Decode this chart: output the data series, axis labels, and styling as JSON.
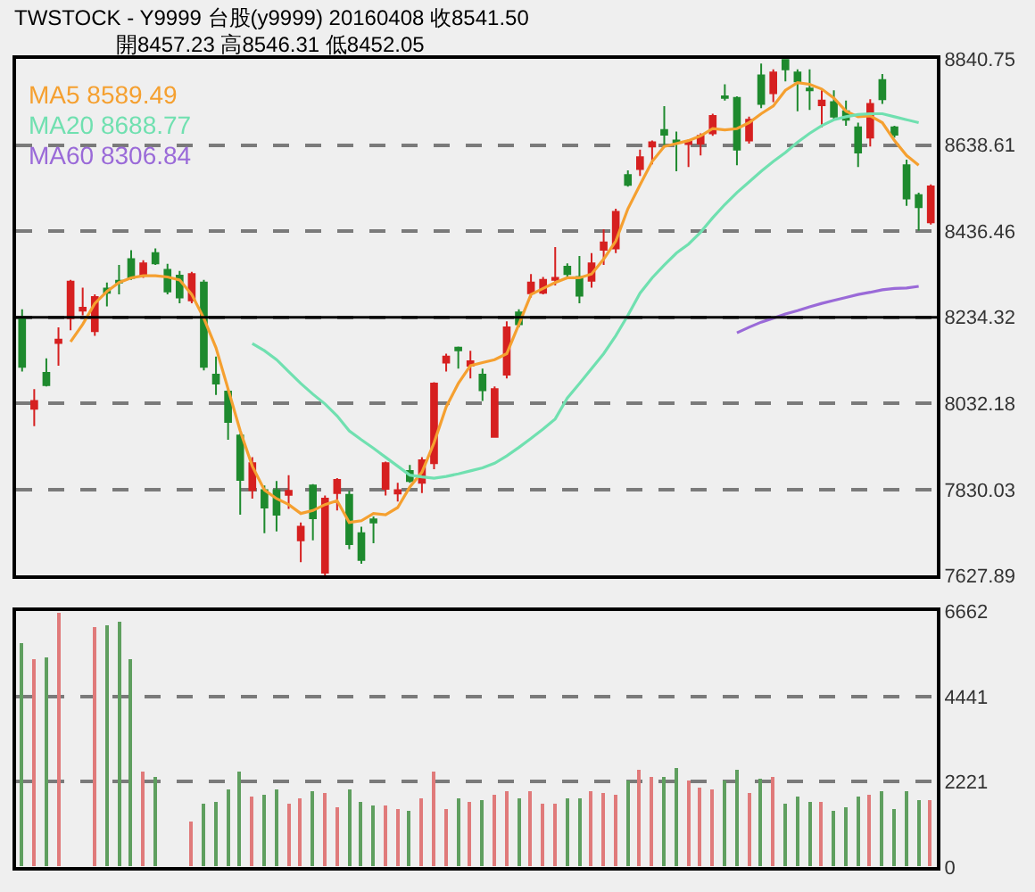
{
  "chart_data": [
    {
      "type": "candlestick",
      "title": "TWSTOCK - Y9999 台股(y9999) 20160408 收8541.50",
      "subtitle": "開8457.23 高8546.31 低8452.05",
      "categories": [
        null,
        null,
        null,
        null,
        null,
        null,
        null,
        null,
        null,
        null,
        null,
        null,
        null,
        null,
        null,
        null,
        null,
        null,
        null,
        null,
        null,
        null,
        null,
        null,
        null,
        null,
        null,
        null,
        null,
        null,
        null,
        null,
        null,
        null,
        null,
        null,
        null,
        null,
        null,
        null,
        null,
        null,
        null,
        null,
        null,
        null,
        null,
        null,
        null,
        null,
        null,
        null,
        null,
        null,
        null,
        null,
        null,
        null,
        null,
        null,
        null,
        null,
        null,
        null,
        null,
        null,
        null,
        null,
        null,
        null,
        null,
        null,
        null,
        null,
        null,
        null
      ],
      "ohlc": [
        [
          8232,
          8253,
          8107,
          8118
        ],
        [
          8020,
          8066,
          7979,
          8038
        ],
        [
          8104,
          8138,
          8072,
          8075
        ],
        [
          8174,
          8211,
          8121,
          8182
        ],
        [
          8232,
          8322,
          8204,
          8318
        ],
        [
          8250,
          8304,
          8239,
          8257
        ],
        [
          8202,
          8288,
          8191,
          8282
        ],
        [
          8302,
          8316,
          8260,
          8292
        ],
        [
          8320,
          8357,
          8288,
          8316
        ],
        [
          8371,
          8392,
          8322,
          8327
        ],
        [
          8334,
          8368,
          8327,
          8361
        ],
        [
          8385,
          8396,
          8357,
          8361
        ],
        [
          8346,
          8360,
          8288,
          8295
        ],
        [
          8332,
          8343,
          8267,
          8281
        ],
        [
          8274,
          8341,
          8267,
          8336
        ],
        [
          8316,
          8322,
          8110,
          8118
        ],
        [
          8100,
          8142,
          8052,
          8079
        ],
        [
          8060,
          8066,
          7947,
          7989
        ],
        [
          7957,
          7961,
          7771,
          7853
        ],
        [
          7829,
          7906,
          7809,
          7892
        ],
        [
          7829,
          7840,
          7728,
          7788
        ],
        [
          7829,
          7850,
          7732,
          7771
        ],
        [
          7818,
          7864,
          7785,
          7827
        ],
        [
          7711,
          7753,
          7660,
          7743
        ],
        [
          7840,
          7843,
          7711,
          7763
        ],
        [
          7635,
          7816,
          7628,
          7809
        ],
        [
          7822,
          7857,
          7781,
          7853
        ],
        [
          7818,
          7827,
          7690,
          7702
        ],
        [
          7728,
          7743,
          7656,
          7665
        ],
        [
          7760,
          7767,
          7704,
          7753
        ],
        [
          7832,
          7896,
          7816,
          7892
        ],
        [
          7821,
          7846,
          7802,
          7829
        ],
        [
          7874,
          7888,
          7846,
          7850
        ],
        [
          7846,
          7906,
          7822,
          7899
        ],
        [
          7892,
          8082,
          7878,
          8079
        ],
        [
          8128,
          8149,
          8107,
          8142
        ],
        [
          8163,
          8166,
          8114,
          8157
        ],
        [
          8121,
          8156,
          8091,
          8131
        ],
        [
          8100,
          8114,
          8038,
          8063
        ],
        [
          7954,
          8072,
          7952,
          8066
        ],
        [
          8100,
          8225,
          8091,
          8211
        ],
        [
          8246,
          8253,
          8211,
          8218
        ],
        [
          8291,
          8336,
          8281,
          8316
        ],
        [
          8292,
          8329,
          8288,
          8322
        ],
        [
          8322,
          8399,
          8309,
          8327
        ],
        [
          8353,
          8361,
          8327,
          8336
        ],
        [
          8329,
          8378,
          8267,
          8285
        ],
        [
          8320,
          8385,
          8304,
          8361
        ],
        [
          8393,
          8441,
          8357,
          8410
        ],
        [
          8396,
          8489,
          8385,
          8482
        ],
        [
          8568,
          8579,
          8541,
          8545
        ],
        [
          8582,
          8628,
          8566,
          8610
        ],
        [
          8635,
          8649,
          8593,
          8645
        ],
        [
          8674,
          8730,
          8635,
          8663
        ],
        [
          8649,
          8670,
          8577,
          8645
        ],
        [
          8641,
          8652,
          8587,
          8646
        ],
        [
          8642,
          8666,
          8614,
          8660
        ],
        [
          8666,
          8712,
          8660,
          8707
        ],
        [
          8753,
          8781,
          8743,
          8749
        ],
        [
          8749,
          8753,
          8591,
          8628
        ],
        [
          8649,
          8705,
          8642,
          8698
        ],
        [
          8802,
          8830,
          8725,
          8735
        ],
        [
          8760,
          8816,
          8739,
          8809
        ],
        [
          8838,
          8840,
          8788,
          8816
        ],
        [
          8809,
          8816,
          8718,
          8788
        ],
        [
          8771,
          8816,
          8721,
          8767
        ],
        [
          8732,
          8767,
          8680,
          8743
        ],
        [
          8739,
          8767,
          8698,
          8705
        ],
        [
          8718,
          8743,
          8684,
          8698
        ],
        [
          8680,
          8691,
          8587,
          8621
        ],
        [
          8656,
          8746,
          8635,
          8735
        ],
        [
          8791,
          8805,
          8735,
          8746
        ],
        [
          8680,
          8684,
          8656,
          8663
        ],
        [
          8591,
          8604,
          8496,
          8513
        ],
        [
          8521,
          8527,
          8438,
          8493
        ],
        [
          8457.23,
          8546.31,
          8452.05,
          8541.5
        ]
      ],
      "colors": [
        "#1e8a2e",
        "#d62020",
        "#1e8a2e",
        "#d62020",
        "#d62020",
        "#d62020",
        "#d62020",
        "#1e8a2e",
        "#1e8a2e",
        "#1e8a2e",
        "#d62020",
        "#1e8a2e",
        "#1e8a2e",
        "#1e8a2e",
        "#d62020",
        "#1e8a2e",
        "#1e8a2e",
        "#1e8a2e",
        "#1e8a2e",
        "#d62020",
        "#1e8a2e",
        "#1e8a2e",
        "#d62020",
        "#d62020",
        "#1e8a2e",
        "#d62020",
        "#d62020",
        "#1e8a2e",
        "#1e8a2e",
        "#1e8a2e",
        "#d62020",
        "#d62020",
        "#1e8a2e",
        "#d62020",
        "#d62020",
        "#d62020",
        "#1e8a2e",
        "#d62020",
        "#1e8a2e",
        "#d62020",
        "#d62020",
        "#1e8a2e",
        "#d62020",
        "#d62020",
        "#d62020",
        "#1e8a2e",
        "#1e8a2e",
        "#d62020",
        "#d62020",
        "#d62020",
        "#1e8a2e",
        "#d62020",
        "#d62020",
        "#1e8a2e",
        "#1e8a2e",
        "#d62020",
        "#d62020",
        "#d62020",
        "#1e8a2e",
        "#1e8a2e",
        "#d62020",
        "#1e8a2e",
        "#d62020",
        "#1e8a2e",
        "#1e8a2e",
        "#1e8a2e",
        "#d62020",
        "#1e8a2e",
        "#1e8a2e",
        "#1e8a2e",
        "#d62020",
        "#1e8a2e",
        "#1e8a2e",
        "#1e8a2e",
        "#1e8a2e",
        "#d62020"
      ],
      "series": [
        {
          "type": "line",
          "name": "MA5 8589.49",
          "color": "#f5a030",
          "values": [
            null,
            null,
            null,
            null,
            8177,
            8218,
            8267,
            8295,
            8316,
            8327,
            8332,
            8332,
            8329,
            8322,
            8288,
            8232,
            8163,
            8066,
            7968,
            7885,
            7829,
            7809,
            7795,
            7774,
            7781,
            7795,
            7804,
            7753,
            7757,
            7774,
            7771,
            7788,
            7836,
            7871,
            7940,
            8024,
            8079,
            8121,
            8128,
            8135,
            8149,
            8218,
            8288,
            8302,
            8316,
            8327,
            8327,
            8336,
            8371,
            8413,
            8489,
            8545,
            8600,
            8635,
            8642,
            8649,
            8660,
            8677,
            8674,
            8677,
            8691,
            8712,
            8730,
            8767,
            8785,
            8781,
            8770,
            8749,
            8718,
            8705,
            8707,
            8691,
            8649,
            8614,
            8591,
            null
          ]
        },
        {
          "type": "line",
          "name": "MA20 8688.77",
          "color": "#70e0b0",
          "values": [
            null,
            null,
            null,
            null,
            null,
            null,
            null,
            null,
            null,
            null,
            null,
            null,
            null,
            null,
            null,
            null,
            null,
            null,
            null,
            8173,
            8156,
            8135,
            8107,
            8079,
            8054,
            8031,
            8003,
            7968,
            7947,
            7927,
            7906,
            7885,
            7864,
            7860,
            7857,
            7861,
            7867,
            7874,
            7881,
            7892,
            7909,
            7929,
            7950,
            7972,
            7996,
            8045,
            8079,
            8114,
            8149,
            8191,
            8239,
            8291,
            8327,
            8357,
            8385,
            8406,
            8434,
            8468,
            8499,
            8527,
            8552,
            8577,
            8600,
            8621,
            8645,
            8666,
            8684,
            8698,
            8705,
            8710,
            8712,
            8712,
            8705,
            8698,
            8691,
            null
          ]
        },
        {
          "type": "line",
          "name": "MA60 8306.84",
          "color": "#9a6ad8",
          "values": [
            null,
            null,
            null,
            null,
            null,
            null,
            null,
            null,
            null,
            null,
            null,
            null,
            null,
            null,
            null,
            null,
            null,
            null,
            null,
            null,
            null,
            null,
            null,
            null,
            null,
            null,
            null,
            null,
            null,
            null,
            null,
            null,
            null,
            null,
            null,
            null,
            null,
            null,
            null,
            null,
            null,
            null,
            null,
            null,
            null,
            null,
            null,
            null,
            null,
            null,
            null,
            null,
            null,
            null,
            null,
            null,
            null,
            null,
            null,
            8198,
            8211,
            8223,
            8232,
            8242,
            8250,
            8259,
            8267,
            8274,
            8281,
            8288,
            8293,
            8299,
            8302,
            8303,
            8307,
            null
          ]
        }
      ],
      "ylim": [
        7627.89,
        8840.75
      ],
      "yticks": [
        7627.89,
        7830.03,
        8032.18,
        8234.32,
        8436.46,
        8638.61,
        8840.75
      ],
      "ref_lines": [
        {
          "axis": "y",
          "value": 8234.32,
          "color": "#000000",
          "line_style": "solid"
        }
      ],
      "grid": "y",
      "legend": "top left"
    },
    {
      "type": "bar",
      "categories": [
        null,
        null,
        null,
        null,
        null,
        null,
        null,
        null,
        null,
        null,
        null,
        null,
        null,
        null,
        null,
        null,
        null,
        null,
        null,
        null,
        null,
        null,
        null,
        null,
        null,
        null,
        null,
        null,
        null,
        null,
        null,
        null,
        null,
        null,
        null,
        null,
        null,
        null,
        null,
        null,
        null,
        null,
        null,
        null,
        null,
        null,
        null,
        null,
        null,
        null,
        null,
        null,
        null,
        null,
        null,
        null,
        null,
        null,
        null,
        null,
        null,
        null,
        null,
        null,
        null,
        null,
        null,
        null,
        null,
        null,
        null,
        null,
        null,
        null,
        null,
        null
      ],
      "values": [
        5829,
        5428,
        5443,
        6600,
        null,
        null,
        6245,
        6291,
        6399,
        5428,
        2498,
        2344,
        null,
        null,
        1157,
        1665,
        1696,
        2005,
        2467,
        1850,
        1897,
        2005,
        1665,
        1773,
        1958,
        1912,
        1542,
        2005,
        1696,
        1588,
        1588,
        1511,
        1465,
        1773,
        2467,
        1511,
        1773,
        1712,
        1727,
        1897,
        1958,
        1804,
        1974,
        1665,
        1665,
        1804,
        1773,
        1958,
        1928,
        1897,
        2236,
        2513,
        2359,
        2359,
        2575,
        2236,
        2082,
        2035,
        2236,
        2544,
        1928,
        2313,
        2359,
        1665,
        1820,
        1696,
        1696,
        1465,
        1573,
        1850,
        1881,
        1958,
        1511,
        1958,
        1727,
        1727
      ],
      "colors": [
        "#5f9f5f",
        "#e07a7a",
        "#5f9f5f",
        "#e07a7a",
        "#e07a7a",
        "#e07a7a",
        "#e07a7a",
        "#5f9f5f",
        "#5f9f5f",
        "#5f9f5f",
        "#e07a7a",
        "#5f9f5f",
        "#5f9f5f",
        "#5f9f5f",
        "#e07a7a",
        "#5f9f5f",
        "#5f9f5f",
        "#5f9f5f",
        "#5f9f5f",
        "#e07a7a",
        "#5f9f5f",
        "#5f9f5f",
        "#e07a7a",
        "#e07a7a",
        "#5f9f5f",
        "#e07a7a",
        "#e07a7a",
        "#5f9f5f",
        "#5f9f5f",
        "#5f9f5f",
        "#e07a7a",
        "#e07a7a",
        "#5f9f5f",
        "#e07a7a",
        "#e07a7a",
        "#e07a7a",
        "#5f9f5f",
        "#e07a7a",
        "#5f9f5f",
        "#e07a7a",
        "#e07a7a",
        "#5f9f5f",
        "#e07a7a",
        "#e07a7a",
        "#e07a7a",
        "#5f9f5f",
        "#5f9f5f",
        "#e07a7a",
        "#e07a7a",
        "#e07a7a",
        "#5f9f5f",
        "#e07a7a",
        "#e07a7a",
        "#5f9f5f",
        "#5f9f5f",
        "#e07a7a",
        "#e07a7a",
        "#e07a7a",
        "#5f9f5f",
        "#5f9f5f",
        "#e07a7a",
        "#5f9f5f",
        "#e07a7a",
        "#5f9f5f",
        "#5f9f5f",
        "#5f9f5f",
        "#e07a7a",
        "#5f9f5f",
        "#5f9f5f",
        "#5f9f5f",
        "#e07a7a",
        "#5f9f5f",
        "#5f9f5f",
        "#5f9f5f",
        "#5f9f5f",
        "#e07a7a"
      ],
      "ylim": [
        0,
        6662
      ],
      "yticks": [
        0,
        2221,
        4441,
        6662
      ],
      "grid": "y"
    }
  ]
}
